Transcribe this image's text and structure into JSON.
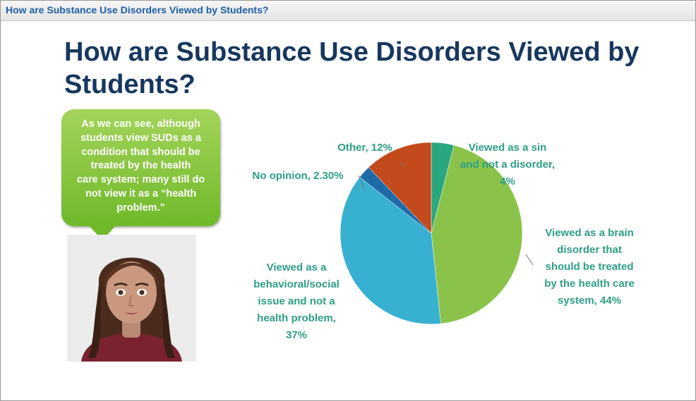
{
  "window": {
    "title": "How are Substance Use Disorders Viewed by Students?"
  },
  "slide": {
    "title": "How are Substance Use Disorders Viewed by Students?",
    "bubble_lines": [
      "As we can see, although",
      "students view SUDs as a",
      "condition that should be",
      "treated by the health",
      "care system; many still do",
      "not view it as a  “health",
      "problem.”"
    ]
  },
  "colors": {
    "label_text": "#2e9e86",
    "title_text": "#17375e",
    "titlebar_text": "#1d5fa8",
    "bubble_green": "#8cc63f"
  },
  "chart_data": {
    "type": "pie",
    "start_angle_deg": 0,
    "direction": "clockwise",
    "slices": [
      {
        "label": "Viewed as a sin and not a disorder",
        "value": 4,
        "value_text": "4%",
        "color": "#2aa77f",
        "label_lines": [
          "Viewed as a sin",
          "and not a disorder,",
          "4%"
        ]
      },
      {
        "label": "Viewed as a brain disorder that should be treated by the health care system",
        "value": 44,
        "value_text": "44%",
        "color": "#8bc34a",
        "label_lines": [
          "Viewed as a brain",
          "disorder that",
          "should be treated",
          "by the health care",
          "system, 44%"
        ]
      },
      {
        "label": "Viewed as a behavioral/social issue and not a health problem",
        "value": 37,
        "value_text": "37%",
        "color": "#38b0d2",
        "label_lines": [
          "Viewed as a",
          "behavioral/social",
          "issue and not a",
          "health problem,",
          "37%"
        ]
      },
      {
        "label": "No opinion",
        "value": 2.3,
        "value_text": "2.30%",
        "color": "#1f6aa8",
        "label_lines": [
          "No opinion, 2.30%"
        ]
      },
      {
        "label": "Other",
        "value": 12,
        "value_text": "12%",
        "color": "#c24a1c",
        "label_lines": [
          "Other, 12%"
        ]
      }
    ]
  }
}
